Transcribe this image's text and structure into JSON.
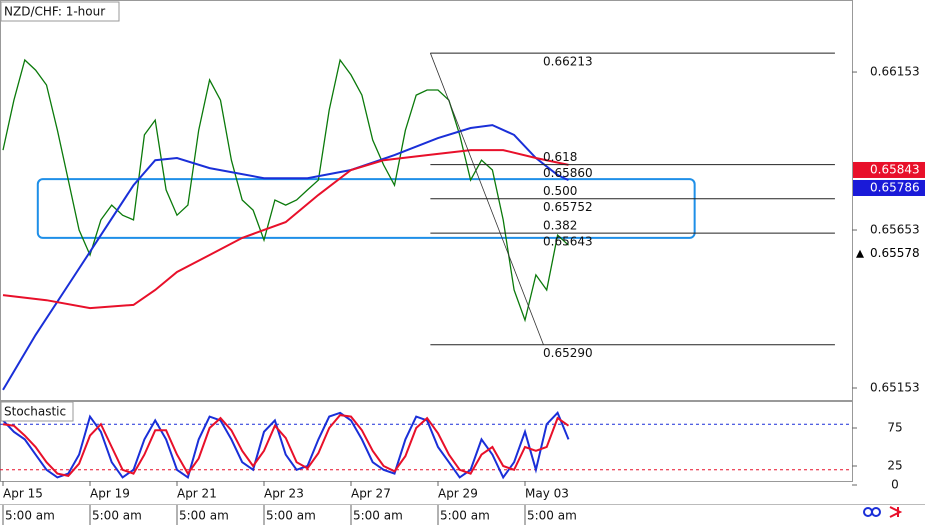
{
  "chart_data": [
    {
      "type": "line",
      "title": "NZD/CHF: 1-hour",
      "xlim": [
        -0.276,
        78.07
      ],
      "xticks": [
        {
          "value": 0,
          "label": "Apr 15"
        },
        {
          "value": 8,
          "label": "Apr 19"
        },
        {
          "value": 16,
          "label": "Apr 21"
        },
        {
          "value": 24,
          "label": "Apr 23"
        },
        {
          "value": 32,
          "label": "Apr 27"
        },
        {
          "value": 40,
          "label": "Apr 29"
        },
        {
          "value": 48,
          "label": "May 03"
        }
      ],
      "xtick_times": [
        "5:00 am",
        "5:00 am",
        "5:00 am",
        "5:00 am",
        "5:00 am",
        "5:00 am",
        "5:00 am"
      ],
      "ylim": [
        0.65115,
        0.66381
      ],
      "yticks": [
        0.66153,
        0.65653,
        0.65153
      ],
      "series": [
        {
          "color": "#0b7a0b",
          "x": [
            0,
            1,
            2,
            3,
            4,
            5,
            6,
            7,
            8,
            9,
            10,
            11,
            12,
            13,
            14,
            15,
            16,
            17,
            18,
            19,
            20,
            21,
            22,
            23,
            24,
            25,
            26,
            27,
            28,
            29,
            30,
            31,
            32,
            33,
            34,
            35,
            36,
            37,
            38,
            39,
            40,
            41,
            42,
            43,
            44,
            45,
            46,
            47,
            48,
            49,
            50,
            51,
            52
          ],
          "values": [
            0.65906,
            0.66064,
            0.66191,
            0.66159,
            0.66112,
            0.65969,
            0.65811,
            0.65653,
            0.65574,
            0.65685,
            0.65732,
            0.657,
            0.65685,
            0.65954,
            0.66001,
            0.6578,
            0.657,
            0.65732,
            0.65969,
            0.66128,
            0.66064,
            0.65874,
            0.65748,
            0.65716,
            0.65621,
            0.65748,
            0.65732,
            0.65748,
            0.6578,
            0.65811,
            0.66033,
            0.66191,
            0.66144,
            0.6608,
            0.65938,
            0.65859,
            0.65795,
            0.65969,
            0.6608,
            0.66096,
            0.66096,
            0.66064,
            0.65954,
            0.65811,
            0.65874,
            0.65843,
            0.65685,
            0.65463,
            0.65368,
            0.65511,
            0.65463,
            0.65637,
            0.65605
          ]
        },
        {
          "color": "#1a2fd8",
          "x": [
            0,
            3,
            6,
            9,
            12,
            14,
            16,
            19,
            24,
            28,
            32,
            36,
            40,
            43,
            45,
            47,
            49,
            51,
            52
          ],
          "values": [
            0.65147,
            0.65321,
            0.65479,
            0.65637,
            0.65795,
            0.65874,
            0.65881,
            0.65849,
            0.65817,
            0.65817,
            0.65843,
            0.6589,
            0.65944,
            0.65976,
            0.65985,
            0.65954,
            0.65881,
            0.65827,
            0.65811
          ]
        },
        {
          "color": "#e8102a",
          "x": [
            0,
            4,
            8,
            12,
            14,
            16,
            19,
            22,
            26,
            29,
            32,
            35,
            39,
            43,
            46,
            49,
            52
          ],
          "values": [
            0.65447,
            0.65431,
            0.65406,
            0.65416,
            0.65463,
            0.6552,
            0.65574,
            0.65628,
            0.65678,
            0.65764,
            0.65843,
            0.65874,
            0.6589,
            0.65906,
            0.65906,
            0.65881,
            0.65859
          ]
        }
      ],
      "fib": {
        "xlim": [
          39.3,
          76.5
        ],
        "swing_x": [
          39.3,
          49.7
        ],
        "levels": [
          {
            "value": 0.66213
          },
          {
            "ratio": 0.618,
            "value": {
              "value": 0.6586,
              "label": "0.65860"
            }
          },
          {
            "ratio": {
              "value": 0.5,
              "label": "0.500"
            },
            "value": {
              "value": 0.65752,
              "label": "0.65752"
            }
          },
          {
            "ratio": 0.382,
            "value": {
              "value": 0.65643,
              "label": "0.65643"
            }
          },
          {
            "value": {
              "value": 0.6529,
              "label": "0.65290"
            }
          }
        ]
      },
      "zone": {
        "xlim": [
          3.2,
          63.6
        ],
        "ylim": [
          0.65628,
          0.65814
        ],
        "color": "#1e8fe8"
      },
      "price_tags": [
        {
          "value": 0.65843,
          "color": "#e8102a"
        },
        {
          "value": 0.65786,
          "color": "#1a1ad8"
        },
        {
          "value": 0.65578,
          "color": "#ffffff"
        }
      ]
    },
    {
      "type": "line",
      "title": "Stochastic",
      "xlim": [
        -0.276,
        78.07
      ],
      "ylim": [
        0,
        100
      ],
      "yticks": [
        75,
        25,
        0
      ],
      "levels": [
        {
          "value": 80,
          "color": "#1a2fd8"
        },
        {
          "value": 20,
          "color": "#e8102a"
        }
      ],
      "series": [
        {
          "color": "#1a2fd8",
          "values": [
            85,
            70,
            60,
            40,
            20,
            10,
            15,
            40,
            90,
            70,
            30,
            10,
            20,
            60,
            85,
            60,
            20,
            10,
            60,
            90,
            85,
            60,
            30,
            20,
            70,
            85,
            40,
            20,
            25,
            60,
            90,
            95,
            85,
            60,
            30,
            20,
            15,
            60,
            90,
            85,
            50,
            30,
            10,
            20,
            60,
            40,
            10,
            30,
            70,
            20,
            80,
            95,
            60
          ]
        },
        {
          "color": "#e8102a",
          "values": [
            80,
            78,
            65,
            50,
            30,
            15,
            12,
            28,
            65,
            80,
            50,
            20,
            15,
            40,
            72,
            72,
            40,
            15,
            35,
            75,
            88,
            72,
            45,
            25,
            45,
            78,
            62,
            30,
            22,
            42,
            75,
            92,
            90,
            72,
            45,
            25,
            18,
            38,
            75,
            88,
            68,
            40,
            20,
            15,
            40,
            50,
            25,
            20,
            50,
            45,
            50,
            88,
            78
          ]
        }
      ]
    }
  ]
}
